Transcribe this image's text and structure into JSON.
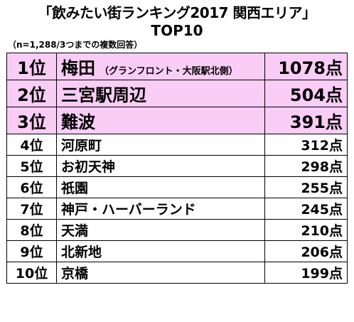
{
  "header": {
    "title": "「飲みたい街ランキング2017 関西エリア」",
    "subtitle": "TOP10",
    "note": "（n=1,288/3つまでの複数回答）"
  },
  "colors": {
    "top3_background": "#f9cdf6",
    "border": "#000000"
  },
  "table": {
    "rows": [
      {
        "rank": "1位",
        "place": "梅田",
        "place_note": "（グランフロント・大阪駅北側）",
        "votes": "1078点"
      },
      {
        "rank": "2位",
        "place": "三宮駅周辺",
        "votes": "504点"
      },
      {
        "rank": "3位",
        "place": "難波",
        "votes": "391点"
      },
      {
        "rank": "4位",
        "place": "河原町",
        "votes": "312点"
      },
      {
        "rank": "5位",
        "place": "お初天神",
        "votes": "298点"
      },
      {
        "rank": "6位",
        "place": "祇園",
        "votes": "255点"
      },
      {
        "rank": "7位",
        "place": "神戸・ハーバーランド",
        "votes": "245点"
      },
      {
        "rank": "8位",
        "place": "天満",
        "votes": "210点"
      },
      {
        "rank": "9位",
        "place": "北新地",
        "votes": "206点"
      },
      {
        "rank": "10位",
        "place": "京橋",
        "votes": "199点"
      }
    ]
  }
}
